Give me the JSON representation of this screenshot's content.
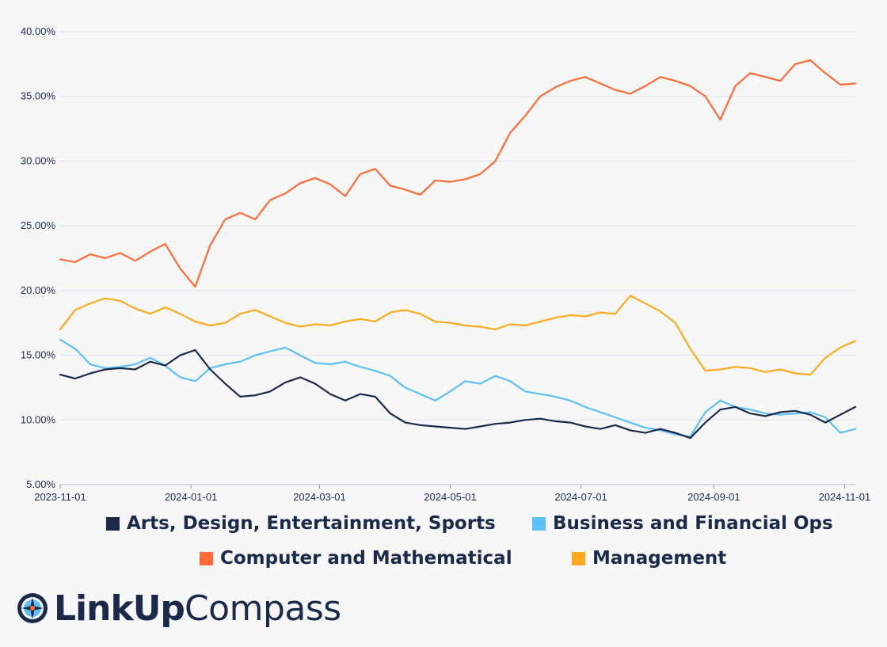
{
  "chart_data": {
    "type": "line",
    "title": "",
    "xlabel": "",
    "ylabel": "",
    "x_range": [
      "2023-11-01",
      "2024-11-06"
    ],
    "ylim": [
      5,
      40
    ],
    "y_ticks": [
      5,
      10,
      15,
      20,
      25,
      30,
      35,
      40
    ],
    "y_tick_labels": [
      "5.00%",
      "10.00%",
      "15.00%",
      "20.00%",
      "25.00%",
      "30.00%",
      "35.00%",
      "40.00%"
    ],
    "x_ticks": [
      "2023-11-01",
      "2024-01-01",
      "2024-03-01",
      "2024-05-01",
      "2024-07-01",
      "2024-09-01",
      "2024-11-01"
    ],
    "grid": "horizontal",
    "legend_position": "bottom",
    "series": [
      {
        "name": "Computer and Mathematical",
        "color": "#ff6b35",
        "x": [
          "2023-11-01",
          "2023-11-08",
          "2023-11-15",
          "2023-11-22",
          "2023-11-29",
          "2023-12-06",
          "2023-12-13",
          "2023-12-20",
          "2023-12-27",
          "2024-01-03",
          "2024-01-10",
          "2024-01-17",
          "2024-01-24",
          "2024-01-31",
          "2024-02-07",
          "2024-02-14",
          "2024-02-21",
          "2024-02-28",
          "2024-03-06",
          "2024-03-13",
          "2024-03-20",
          "2024-03-27",
          "2024-04-03",
          "2024-04-10",
          "2024-04-17",
          "2024-04-24",
          "2024-05-01",
          "2024-05-08",
          "2024-05-15",
          "2024-05-22",
          "2024-05-29",
          "2024-06-05",
          "2024-06-12",
          "2024-06-19",
          "2024-06-26",
          "2024-07-03",
          "2024-07-10",
          "2024-07-17",
          "2024-07-24",
          "2024-07-31",
          "2024-08-07",
          "2024-08-14",
          "2024-08-21",
          "2024-08-28",
          "2024-09-04",
          "2024-09-11",
          "2024-09-18",
          "2024-09-25",
          "2024-10-02",
          "2024-10-09",
          "2024-10-16",
          "2024-10-23",
          "2024-10-30",
          "2024-11-06"
        ],
        "values": [
          22.4,
          22.2,
          22.8,
          22.5,
          22.9,
          22.3,
          23.0,
          23.6,
          21.7,
          20.3,
          23.5,
          25.5,
          26.0,
          25.5,
          27.0,
          27.5,
          28.3,
          28.7,
          28.2,
          27.3,
          29.0,
          29.4,
          28.1,
          27.8,
          27.4,
          28.5,
          28.4,
          28.6,
          29.0,
          30.0,
          32.2,
          33.5,
          35.0,
          35.7,
          36.2,
          36.5,
          36.0,
          35.5,
          35.2,
          35.8,
          36.5,
          36.2,
          35.8,
          35.0,
          33.2,
          35.8,
          36.8,
          36.5,
          36.2,
          37.5,
          37.8,
          36.8,
          35.9,
          36.0
        ]
      },
      {
        "name": "Management",
        "color": "#ffaa1d",
        "x": [
          "2023-11-01",
          "2023-11-08",
          "2023-11-15",
          "2023-11-22",
          "2023-11-29",
          "2023-12-06",
          "2023-12-13",
          "2023-12-20",
          "2023-12-27",
          "2024-01-03",
          "2024-01-10",
          "2024-01-17",
          "2024-01-24",
          "2024-01-31",
          "2024-02-07",
          "2024-02-14",
          "2024-02-21",
          "2024-02-28",
          "2024-03-06",
          "2024-03-13",
          "2024-03-20",
          "2024-03-27",
          "2024-04-03",
          "2024-04-10",
          "2024-04-17",
          "2024-04-24",
          "2024-05-01",
          "2024-05-08",
          "2024-05-15",
          "2024-05-22",
          "2024-05-29",
          "2024-06-05",
          "2024-06-12",
          "2024-06-19",
          "2024-06-26",
          "2024-07-03",
          "2024-07-10",
          "2024-07-17",
          "2024-07-24",
          "2024-07-31",
          "2024-08-07",
          "2024-08-14",
          "2024-08-21",
          "2024-08-28",
          "2024-09-04",
          "2024-09-11",
          "2024-09-18",
          "2024-09-25",
          "2024-10-02",
          "2024-10-09",
          "2024-10-16",
          "2024-10-23",
          "2024-10-30",
          "2024-11-06"
        ],
        "values": [
          17.0,
          18.5,
          19.0,
          19.4,
          19.2,
          18.6,
          18.2,
          18.7,
          18.2,
          17.6,
          17.3,
          17.5,
          18.2,
          18.5,
          18.0,
          17.5,
          17.2,
          17.4,
          17.3,
          17.6,
          17.8,
          17.6,
          18.3,
          18.5,
          18.2,
          17.6,
          17.5,
          17.3,
          17.2,
          17.0,
          17.4,
          17.3,
          17.6,
          17.9,
          18.1,
          18.0,
          18.3,
          18.2,
          19.6,
          19.0,
          18.4,
          17.5,
          15.5,
          13.8,
          13.9,
          14.1,
          14.0,
          13.7,
          13.9,
          13.6,
          13.5,
          14.8,
          15.6,
          16.1
        ]
      },
      {
        "name": "Business and Financial Ops",
        "color": "#5bc0f8",
        "x": [
          "2023-11-01",
          "2023-11-08",
          "2023-11-15",
          "2023-11-22",
          "2023-11-29",
          "2023-12-06",
          "2023-12-13",
          "2023-12-20",
          "2023-12-27",
          "2024-01-03",
          "2024-01-10",
          "2024-01-17",
          "2024-01-24",
          "2024-01-31",
          "2024-02-07",
          "2024-02-14",
          "2024-02-21",
          "2024-02-28",
          "2024-03-06",
          "2024-03-13",
          "2024-03-20",
          "2024-03-27",
          "2024-04-03",
          "2024-04-10",
          "2024-04-17",
          "2024-04-24",
          "2024-05-01",
          "2024-05-08",
          "2024-05-15",
          "2024-05-22",
          "2024-05-29",
          "2024-06-05",
          "2024-06-12",
          "2024-06-19",
          "2024-06-26",
          "2024-07-03",
          "2024-07-10",
          "2024-07-17",
          "2024-07-24",
          "2024-07-31",
          "2024-08-07",
          "2024-08-14",
          "2024-08-21",
          "2024-08-28",
          "2024-09-04",
          "2024-09-11",
          "2024-09-18",
          "2024-09-25",
          "2024-10-02",
          "2024-10-09",
          "2024-10-16",
          "2024-10-23",
          "2024-10-30",
          "2024-11-06"
        ],
        "values": [
          16.2,
          15.5,
          14.3,
          14.0,
          14.1,
          14.3,
          14.8,
          14.2,
          13.3,
          13.0,
          14.0,
          14.3,
          14.5,
          15.0,
          15.3,
          15.6,
          15.0,
          14.4,
          14.3,
          14.5,
          14.1,
          13.8,
          13.4,
          12.5,
          12.0,
          11.5,
          12.2,
          13.0,
          12.8,
          13.4,
          13.0,
          12.2,
          12.0,
          11.8,
          11.5,
          11.0,
          10.6,
          10.2,
          9.8,
          9.4,
          9.2,
          8.9,
          8.7,
          10.6,
          11.5,
          11.0,
          10.8,
          10.5,
          10.4,
          10.5,
          10.6,
          10.2,
          9.0,
          9.3
        ]
      },
      {
        "name": "Arts, Design, Entertainment, Sports",
        "color": "#1b2a4a",
        "x": [
          "2023-11-01",
          "2023-11-08",
          "2023-11-15",
          "2023-11-22",
          "2023-11-29",
          "2023-12-06",
          "2023-12-13",
          "2023-12-20",
          "2023-12-27",
          "2024-01-03",
          "2024-01-10",
          "2024-01-17",
          "2024-01-24",
          "2024-01-31",
          "2024-02-07",
          "2024-02-14",
          "2024-02-21",
          "2024-02-28",
          "2024-03-06",
          "2024-03-13",
          "2024-03-20",
          "2024-03-27",
          "2024-04-03",
          "2024-04-10",
          "2024-04-17",
          "2024-04-24",
          "2024-05-01",
          "2024-05-08",
          "2024-05-15",
          "2024-05-22",
          "2024-05-29",
          "2024-06-05",
          "2024-06-12",
          "2024-06-19",
          "2024-06-26",
          "2024-07-03",
          "2024-07-10",
          "2024-07-17",
          "2024-07-24",
          "2024-07-31",
          "2024-08-07",
          "2024-08-14",
          "2024-08-21",
          "2024-08-28",
          "2024-09-04",
          "2024-09-11",
          "2024-09-18",
          "2024-09-25",
          "2024-10-02",
          "2024-10-09",
          "2024-10-16",
          "2024-10-23",
          "2024-10-30",
          "2024-11-06"
        ],
        "values": [
          13.5,
          13.2,
          13.6,
          13.9,
          14.0,
          13.9,
          14.5,
          14.2,
          15.0,
          15.4,
          13.9,
          12.8,
          11.8,
          11.9,
          12.2,
          12.9,
          13.3,
          12.8,
          12.0,
          11.5,
          12.0,
          11.8,
          10.5,
          9.8,
          9.6,
          9.5,
          9.4,
          9.3,
          9.5,
          9.7,
          9.8,
          10.0,
          10.1,
          9.9,
          9.8,
          9.5,
          9.3,
          9.6,
          9.2,
          9.0,
          9.3,
          9.0,
          8.6,
          9.8,
          10.8,
          11.0,
          10.5,
          10.3,
          10.6,
          10.7,
          10.4,
          9.8,
          10.4,
          11.0
        ]
      }
    ]
  },
  "legend": {
    "row1": [
      {
        "label": "Arts, Design, Entertainment, Sports",
        "color": "#1b2a4a"
      },
      {
        "label": "Business and Financial Ops",
        "color": "#5bc0f8"
      }
    ],
    "row2": [
      {
        "label": "Computer and Mathematical",
        "color": "#ff6b35"
      },
      {
        "label": "Management",
        "color": "#ffaa1d"
      }
    ]
  },
  "brand": {
    "name_bold": "LinkUp",
    "name_light": "Compass",
    "logo_icon": "compass-icon"
  }
}
